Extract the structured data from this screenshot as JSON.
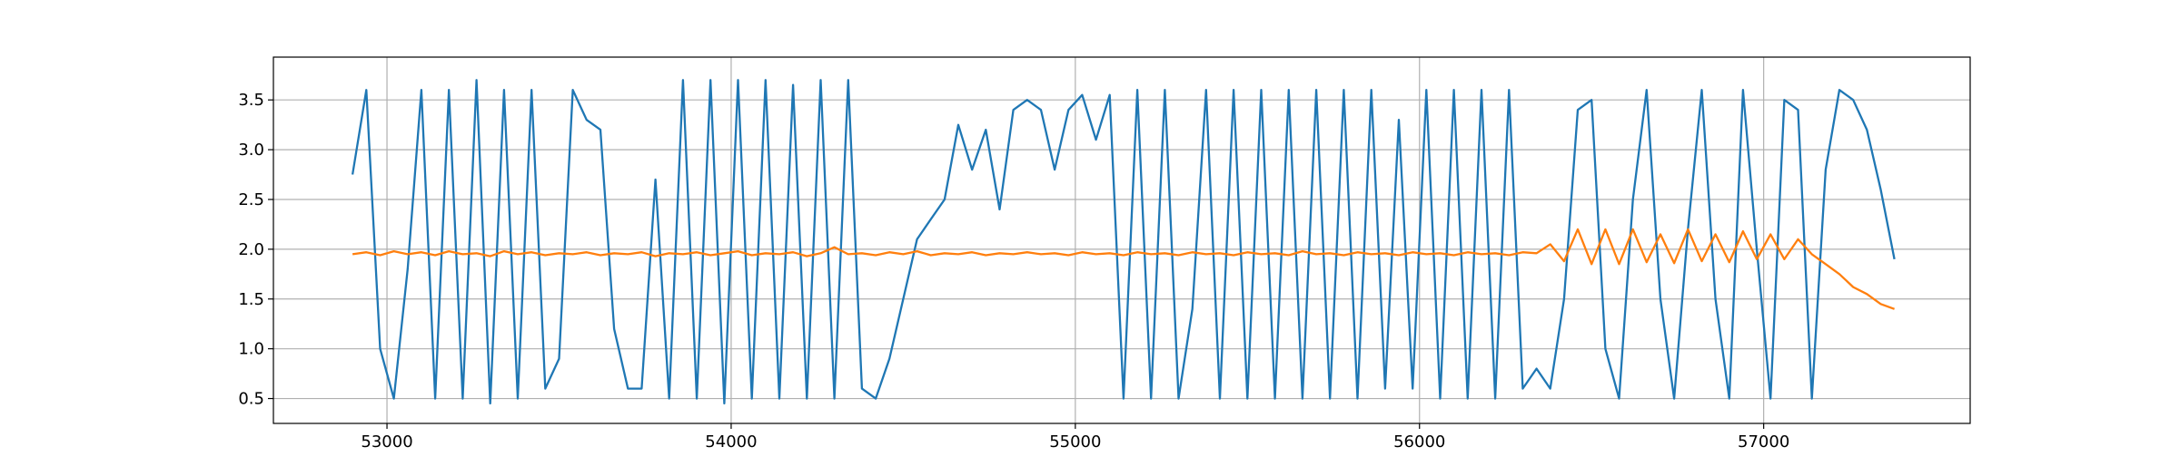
{
  "chart_data": {
    "type": "line",
    "x": [
      52900,
      52940,
      52980,
      53020,
      53060,
      53100,
      53140,
      53180,
      53220,
      53260,
      53300,
      53340,
      53380,
      53420,
      53460,
      53500,
      53540,
      53580,
      53620,
      53660,
      53700,
      53740,
      53780,
      53820,
      53860,
      53900,
      53940,
      53980,
      54020,
      54060,
      54100,
      54140,
      54180,
      54220,
      54260,
      54300,
      54340,
      54380,
      54420,
      54460,
      54500,
      54540,
      54580,
      54620,
      54660,
      54700,
      54740,
      54780,
      54820,
      54860,
      54900,
      54940,
      54980,
      55020,
      55060,
      55100,
      55140,
      55180,
      55220,
      55260,
      55300,
      55340,
      55380,
      55420,
      55460,
      55500,
      55540,
      55580,
      55620,
      55660,
      55700,
      55740,
      55780,
      55820,
      55860,
      55900,
      55940,
      55980,
      56020,
      56060,
      56100,
      56140,
      56180,
      56220,
      56260,
      56300,
      56340,
      56380,
      56420,
      56460,
      56500,
      56540,
      56580,
      56620,
      56660,
      56700,
      56740,
      56780,
      56820,
      56860,
      56900,
      56940,
      56980,
      57020,
      57060,
      57100,
      57140,
      57180,
      57220,
      57260,
      57300,
      57340,
      57380
    ],
    "series": [
      {
        "color": "#1f77b4",
        "values": [
          2.75,
          3.6,
          1.0,
          0.5,
          1.8,
          3.6,
          0.5,
          3.6,
          0.5,
          3.7,
          0.45,
          3.6,
          0.5,
          3.6,
          0.6,
          0.9,
          3.6,
          3.3,
          3.2,
          1.2,
          0.6,
          0.6,
          2.7,
          0.5,
          3.7,
          0.5,
          3.7,
          0.45,
          3.7,
          0.5,
          3.7,
          0.5,
          3.65,
          0.5,
          3.7,
          0.5,
          3.7,
          0.6,
          0.5,
          0.9,
          1.5,
          2.1,
          2.3,
          2.5,
          3.25,
          2.8,
          3.2,
          2.4,
          3.4,
          3.5,
          3.4,
          2.8,
          3.4,
          3.55,
          3.1,
          3.55,
          0.5,
          3.6,
          0.5,
          3.6,
          0.5,
          1.4,
          3.6,
          0.5,
          3.6,
          0.5,
          3.6,
          0.5,
          3.6,
          0.5,
          3.6,
          0.5,
          3.6,
          0.5,
          3.6,
          0.6,
          3.3,
          0.6,
          3.6,
          0.5,
          3.6,
          0.5,
          3.6,
          0.5,
          3.6,
          0.6,
          0.8,
          0.6,
          1.5,
          3.4,
          3.5,
          1.0,
          0.5,
          2.5,
          3.6,
          1.5,
          0.5,
          2.2,
          3.6,
          1.5,
          0.5,
          3.6,
          2.0,
          0.5,
          3.5,
          3.4,
          0.5,
          2.8,
          3.6,
          3.5,
          3.2,
          2.6,
          1.9
        ]
      },
      {
        "color": "#ff7f0e",
        "values": [
          1.95,
          1.97,
          1.94,
          1.98,
          1.95,
          1.97,
          1.94,
          1.98,
          1.95,
          1.96,
          1.93,
          1.98,
          1.95,
          1.97,
          1.94,
          1.96,
          1.95,
          1.97,
          1.94,
          1.96,
          1.95,
          1.97,
          1.93,
          1.96,
          1.95,
          1.97,
          1.94,
          1.96,
          1.98,
          1.94,
          1.96,
          1.95,
          1.97,
          1.93,
          1.96,
          2.02,
          1.95,
          1.96,
          1.94,
          1.97,
          1.95,
          1.98,
          1.94,
          1.96,
          1.95,
          1.97,
          1.94,
          1.96,
          1.95,
          1.97,
          1.95,
          1.96,
          1.94,
          1.97,
          1.95,
          1.96,
          1.94,
          1.97,
          1.95,
          1.96,
          1.94,
          1.97,
          1.95,
          1.96,
          1.94,
          1.97,
          1.95,
          1.96,
          1.94,
          1.98,
          1.95,
          1.96,
          1.94,
          1.97,
          1.95,
          1.96,
          1.94,
          1.97,
          1.95,
          1.96,
          1.94,
          1.97,
          1.95,
          1.96,
          1.94,
          1.97,
          1.96,
          2.05,
          1.88,
          2.2,
          1.85,
          2.2,
          1.85,
          2.2,
          1.87,
          2.15,
          1.86,
          2.2,
          1.88,
          2.15,
          1.87,
          2.18,
          1.9,
          2.15,
          1.9,
          2.1,
          1.95,
          1.85,
          1.75,
          1.62,
          1.55,
          1.45,
          1.4
        ]
      }
    ],
    "xlim": [
      52670,
      57600
    ],
    "xticks": [
      53000,
      54000,
      55000,
      56000,
      57000
    ],
    "ylim": [
      0.25,
      3.93
    ],
    "yticks": [
      0.5,
      {
        "value": 1,
        "label": "1.0"
      },
      1.5,
      {
        "value": 2,
        "label": "2.0"
      },
      2.5,
      {
        "value": 3,
        "label": "3.0"
      },
      3.5
    ],
    "grid": true
  }
}
